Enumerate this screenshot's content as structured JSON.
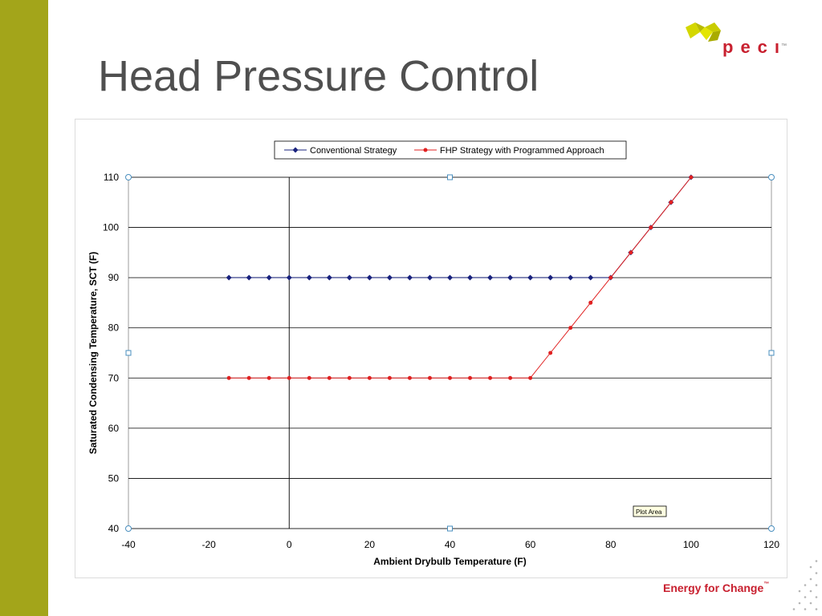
{
  "slide": {
    "title": "Head Pressure Control",
    "logo_text": "pecı",
    "logo_tm": "™",
    "tagline": "Energy for Change",
    "tagline_tm": "™",
    "accent_color": "#a3a51a",
    "brand_color": "#c8202f"
  },
  "chart_data": {
    "type": "line",
    "title": "",
    "xlabel": "Ambient Drybulb Temperature (F)",
    "ylabel": "Saturated Condensing Temperature, SCT (F)",
    "xlim": [
      -40,
      120
    ],
    "ylim": [
      40,
      110
    ],
    "xticks": [
      -40,
      -20,
      0,
      20,
      40,
      60,
      80,
      100,
      120
    ],
    "yticks": [
      40,
      50,
      60,
      70,
      80,
      90,
      100,
      110
    ],
    "grid": "horizontal",
    "legend_position": "top",
    "plot_area_label": "Plot Area",
    "series": [
      {
        "name": "Conventional  Strategy",
        "color": "#1a237e",
        "marker": "diamond",
        "x": [
          -15,
          -10,
          -5,
          0,
          5,
          10,
          15,
          20,
          25,
          30,
          35,
          40,
          45,
          50,
          55,
          60,
          65,
          70,
          75,
          80,
          85,
          90,
          95,
          100
        ],
        "y": [
          90,
          90,
          90,
          90,
          90,
          90,
          90,
          90,
          90,
          90,
          90,
          90,
          90,
          90,
          90,
          90,
          90,
          90,
          90,
          90,
          95,
          100,
          105,
          110
        ]
      },
      {
        "name": "FHP Strategy  with  Programmed  Approach",
        "color": "#e02020",
        "marker": "circle",
        "x": [
          -15,
          -10,
          -5,
          0,
          5,
          10,
          15,
          20,
          25,
          30,
          35,
          40,
          45,
          50,
          55,
          60,
          65,
          70,
          75,
          80,
          85,
          90,
          95,
          100
        ],
        "y": [
          70,
          70,
          70,
          70,
          70,
          70,
          70,
          70,
          70,
          70,
          70,
          70,
          70,
          70,
          70,
          70,
          75,
          80,
          85,
          90,
          95,
          100,
          105,
          110
        ]
      }
    ]
  }
}
